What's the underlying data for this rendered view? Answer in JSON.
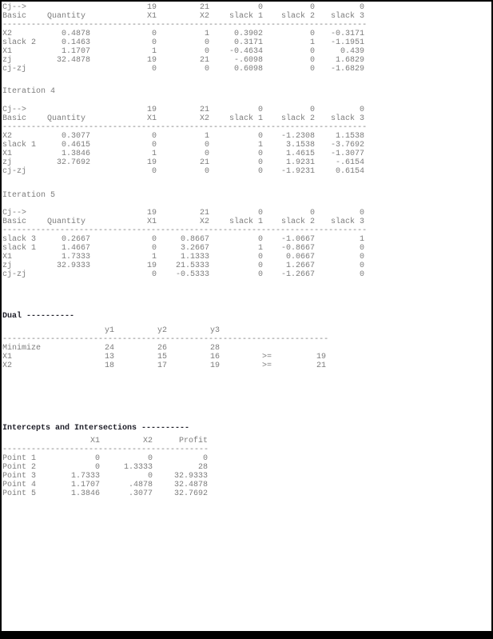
{
  "colors": {
    "background": "#ffffff",
    "frame": "#000000",
    "text_gray": "#7c7c7c",
    "heading_dark": "#20202a"
  },
  "tableau_sections": [
    {
      "iteration_title": "",
      "cj_row": {
        "label": "Cj-->",
        "values": [
          "19",
          "21",
          "0",
          "0",
          "0"
        ]
      },
      "header_row": {
        "basic": "Basic",
        "quantity": "Quantity",
        "columns": [
          "X1",
          "X2",
          "slack 1",
          "slack 2",
          "slack 3"
        ]
      },
      "separator": "----------------------------------------------------------------------------",
      "rows": [
        {
          "basic": "X2",
          "cells": [
            "0.4878",
            "0",
            "1",
            "0.3902",
            "0",
            "-0.3171"
          ]
        },
        {
          "basic": "slack 2",
          "cells": [
            "0.1463",
            "0",
            "0",
            "0.3171",
            "1",
            "-1.1951"
          ]
        },
        {
          "basic": "X1",
          "cells": [
            "1.1707",
            "1",
            "0",
            "-0.4634",
            "0",
            "0.439"
          ]
        },
        {
          "basic": "zj",
          "cells": [
            "32.4878",
            "19",
            "21",
            "-.6098",
            "0",
            "1.6829"
          ]
        },
        {
          "basic": "cj-zj",
          "cells": [
            "",
            "0",
            "0",
            "0.6098",
            "0",
            "-1.6829"
          ]
        }
      ]
    },
    {
      "iteration_title": "Iteration 4",
      "cj_row": {
        "label": "Cj-->",
        "values": [
          "19",
          "21",
          "0",
          "0",
          "0"
        ]
      },
      "header_row": {
        "basic": "Basic",
        "quantity": "Quantity",
        "columns": [
          "X1",
          "X2",
          "slack 1",
          "slack 2",
          "slack 3"
        ]
      },
      "separator": "----------------------------------------------------------------------------",
      "rows": [
        {
          "basic": "X2",
          "cells": [
            "0.3077",
            "0",
            "1",
            "0",
            "-1.2308",
            "1.1538"
          ]
        },
        {
          "basic": "slack 1",
          "cells": [
            "0.4615",
            "0",
            "0",
            "1",
            "3.1538",
            "-3.7692"
          ]
        },
        {
          "basic": "X1",
          "cells": [
            "1.3846",
            "1",
            "0",
            "0",
            "1.4615",
            "-1.3077"
          ]
        },
        {
          "basic": "zj",
          "cells": [
            "32.7692",
            "19",
            "21",
            "0",
            "1.9231",
            "-.6154"
          ]
        },
        {
          "basic": "cj-zj",
          "cells": [
            "",
            "0",
            "0",
            "0",
            "-1.9231",
            "0.6154"
          ]
        }
      ]
    },
    {
      "iteration_title": "Iteration 5",
      "cj_row": {
        "label": "Cj-->",
        "values": [
          "19",
          "21",
          "0",
          "0",
          "0"
        ]
      },
      "header_row": {
        "basic": "Basic",
        "quantity": "Quantity",
        "columns": [
          "X1",
          "X2",
          "slack 1",
          "slack 2",
          "slack 3"
        ]
      },
      "separator": "----------------------------------------------------------------------------",
      "rows": [
        {
          "basic": "slack 3",
          "cells": [
            "0.2667",
            "0",
            "0.8667",
            "0",
            "-1.0667",
            "1"
          ]
        },
        {
          "basic": "slack 1",
          "cells": [
            "1.4667",
            "0",
            "3.2667",
            "1",
            "-0.8667",
            "0"
          ]
        },
        {
          "basic": "X1",
          "cells": [
            "1.7333",
            "1",
            "1.1333",
            "0",
            "0.0667",
            "0"
          ]
        },
        {
          "basic": "zj",
          "cells": [
            "32.9333",
            "19",
            "21.5333",
            "0",
            "1.2667",
            "0"
          ]
        },
        {
          "basic": "cj-zj",
          "cells": [
            "",
            "0",
            "-0.5333",
            "0",
            "-1.2667",
            "0"
          ]
        }
      ]
    }
  ],
  "dual": {
    "title": "Dual ----------",
    "headers": [
      "y1",
      "y2",
      "y3"
    ],
    "separator": "--------------------------------------------------------------------",
    "rows": [
      {
        "label": "Minimize",
        "cells": [
          "24",
          "26",
          "28",
          "",
          ""
        ]
      },
      {
        "label": "X1",
        "cells": [
          "13",
          "15",
          "16",
          ">=",
          "19"
        ]
      },
      {
        "label": "X2",
        "cells": [
          "18",
          "17",
          "19",
          ">=",
          "21"
        ]
      }
    ]
  },
  "intercepts": {
    "title": "Intercepts and Intersections ----------",
    "headers": [
      "X1",
      "X2",
      "Profit"
    ],
    "separator": "-------------------------------------------",
    "rows": [
      {
        "label": "Point 1",
        "cells": [
          "0",
          "0",
          "0"
        ]
      },
      {
        "label": "Point 2",
        "cells": [
          "0",
          "1.3333",
          "28"
        ]
      },
      {
        "label": "Point 3",
        "cells": [
          "1.7333",
          "0",
          "32.9333"
        ]
      },
      {
        "label": "Point 4",
        "cells": [
          "1.1707",
          ".4878",
          "32.4878"
        ]
      },
      {
        "label": "Point 5",
        "cells": [
          "1.3846",
          ".3077",
          "32.7692"
        ]
      }
    ]
  }
}
